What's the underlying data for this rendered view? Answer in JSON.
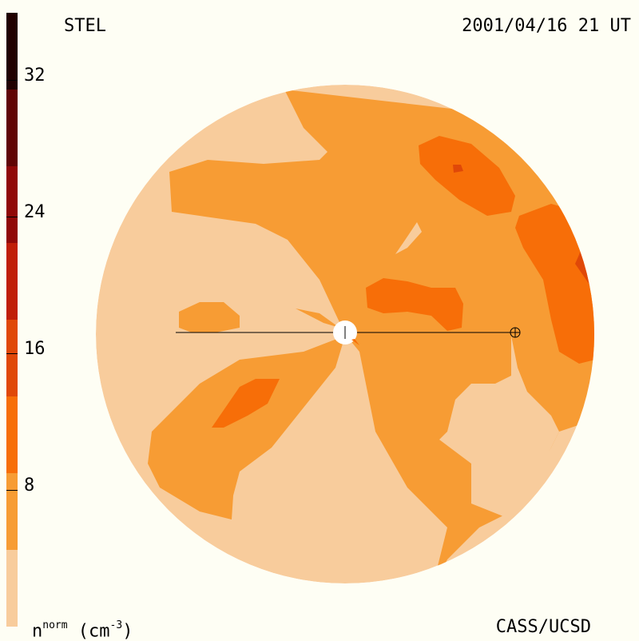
{
  "header": {
    "left_title": "STEL",
    "right_title": "2001/04/16 21 UT"
  },
  "footer": {
    "units_base": "n",
    "units_sup": "norm",
    "units_rest": " (cm",
    "units_exp": "-3",
    "units_close": ")",
    "credit": "CASS/UCSD"
  },
  "colorbar": {
    "ticks": [
      "8",
      "16",
      "24",
      "32"
    ],
    "levels": [
      {
        "color": "#f8cc9c"
      },
      {
        "color": "#f79c34"
      },
      {
        "color": "#f76e08"
      },
      {
        "color": "#e04808"
      },
      {
        "color": "#c01e08"
      },
      {
        "color": "#900808"
      },
      {
        "color": "#600404"
      },
      {
        "color": "#200000"
      }
    ]
  },
  "colors": {
    "background": "#fefef4",
    "sun": "#ffffff",
    "line": "#000000"
  },
  "markers": {
    "sun_symbol": "sun",
    "earth_symbol": "earth"
  }
}
